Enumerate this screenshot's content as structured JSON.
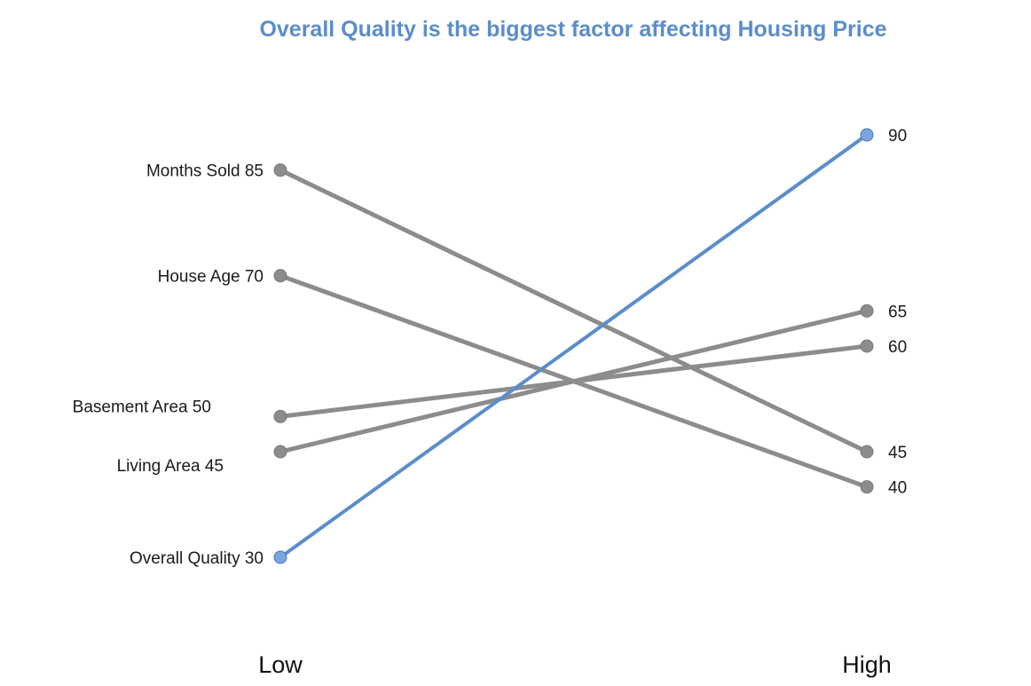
{
  "chart_data": {
    "type": "line",
    "title": "Overall Quality is the biggest factor affecting Housing Price",
    "x": [
      "Low",
      "High"
    ],
    "xlabel": "",
    "ylabel": "",
    "ylim": [
      0,
      100
    ],
    "grid": false,
    "series": [
      {
        "name": "Months Sold",
        "left_label": "Months Sold 85",
        "values": [
          85,
          45
        ],
        "right_label": "45",
        "highlight": false
      },
      {
        "name": "House Age",
        "left_label": "House Age 70",
        "values": [
          70,
          40
        ],
        "right_label": "40",
        "highlight": false
      },
      {
        "name": "Basement Area",
        "left_label": "Basement Area 50",
        "values": [
          50,
          60
        ],
        "right_label": "60",
        "highlight": false
      },
      {
        "name": "Living Area",
        "left_label": "Living Area 45",
        "values": [
          45,
          65
        ],
        "right_label": "65",
        "highlight": false
      },
      {
        "name": "Overall Quality",
        "left_label": "Overall Quality 30",
        "values": [
          30,
          90
        ],
        "right_label": "90",
        "highlight": true
      }
    ]
  },
  "colors": {
    "title": "#5b8dc9",
    "highlight_line": "#5b8dc9",
    "highlight_marker": "#7aa6e0",
    "default_line": "#8c8c8c",
    "default_marker": "#8c8c8c"
  }
}
